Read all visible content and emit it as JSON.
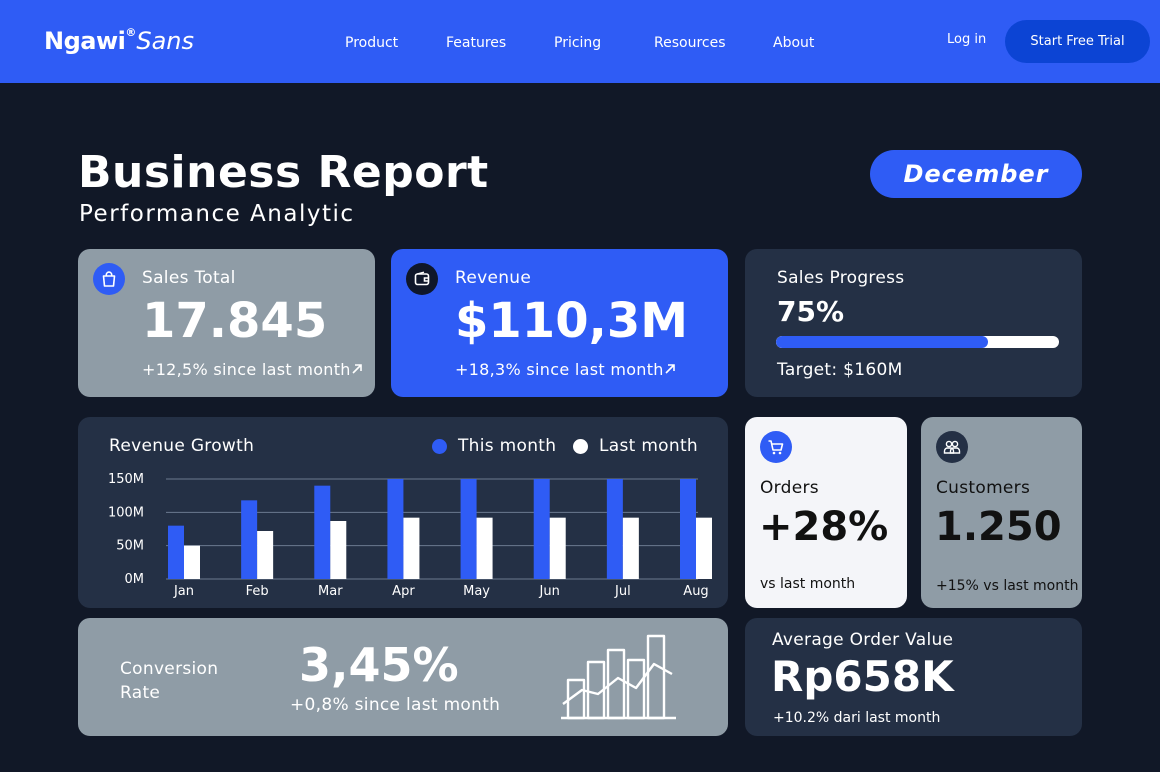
{
  "nav": {
    "logo_bold": "Ngawi",
    "logo_reg": "®",
    "logo_light": "Sans",
    "links": [
      "Product",
      "Features",
      "Pricing",
      "Resources",
      "About"
    ],
    "login": "Log in",
    "cta": "Start Free Trial"
  },
  "header": {
    "title": "Business Report",
    "subtitle": "Performance Analytic",
    "month": "December"
  },
  "cards": {
    "sales_total": {
      "label": "Sales Total",
      "value": "17.845",
      "change": "+12,5% since last month",
      "icon": "shopping-bag-icon"
    },
    "revenue": {
      "label": "Revenue",
      "value": "$110,3M",
      "change": "+18,3% since last month",
      "icon": "wallet-icon"
    },
    "sales_progress": {
      "label": "Sales Progress",
      "value": "75%",
      "progress": 0.75,
      "target": "Target: $160M"
    },
    "orders": {
      "label": "Orders",
      "value": "+28%",
      "note": "vs last month",
      "icon": "cart-icon"
    },
    "customers": {
      "label": "Customers",
      "value": "1.250",
      "note": "+15% vs last month",
      "icon": "users-icon"
    },
    "conversion": {
      "label_line1": "Conversion",
      "label_line2": "Rate",
      "value": "3,45%",
      "change": "+0,8% since last month",
      "icon": "growth-chart-icon"
    },
    "aov": {
      "label": "Average Order Value",
      "value": "Rp658K",
      "note": "+10.2% dari last month"
    }
  },
  "chart_data": {
    "type": "bar",
    "title": "Revenue Growth",
    "categories": [
      "Jan",
      "Feb",
      "Mar",
      "Apr",
      "May",
      "Jun",
      "Jul",
      "Aug"
    ],
    "series": [
      {
        "name": "This month",
        "values": [
          80,
          118,
          140,
          150,
          150,
          150,
          150,
          150
        ]
      },
      {
        "name": "Last month",
        "values": [
          50,
          72,
          87,
          92,
          92,
          92,
          92,
          92
        ]
      }
    ],
    "y_ticks": [
      "0M",
      "50M",
      "100M",
      "150M"
    ],
    "y_tick_values": [
      0,
      50,
      100,
      150
    ],
    "ylim": [
      0,
      150
    ],
    "grid": true,
    "legend": "top-right",
    "colors": {
      "this_month": "#2f5cf5",
      "last_month": "#ffffff"
    }
  },
  "colors": {
    "brand_blue": "#2f5cf5",
    "background": "#111827",
    "card_navy": "#243045",
    "card_grey": "#8f9ca6"
  }
}
